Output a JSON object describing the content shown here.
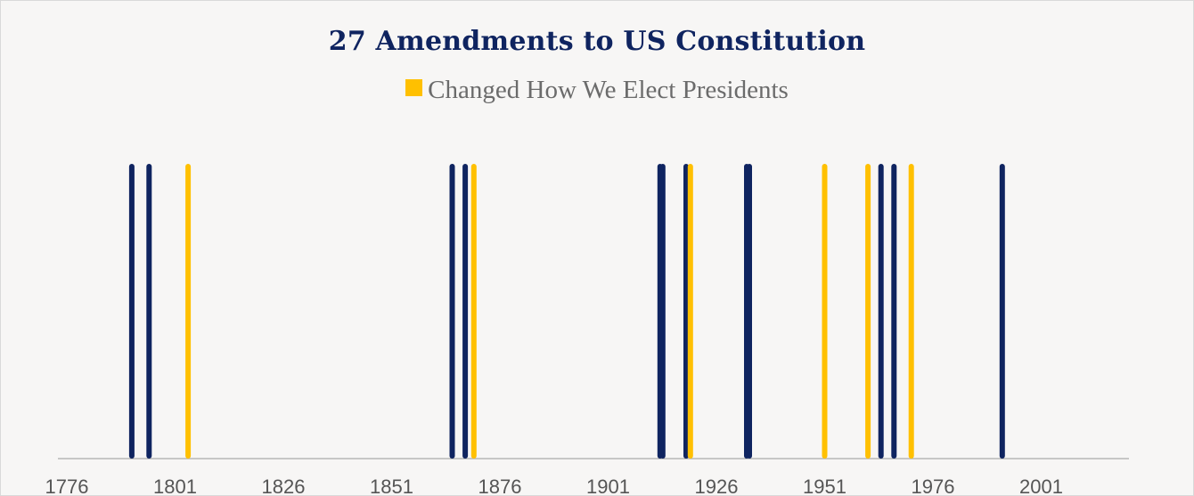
{
  "chart_data": {
    "type": "bar",
    "title": "27 Amendments to US Constitution",
    "legend": [
      {
        "name": "Changed How We Elect Presidents",
        "color": "#ffc000"
      }
    ],
    "legend_position": "top-center",
    "xlabel": "",
    "ylabel": "",
    "xlim": [
      1776,
      2026
    ],
    "xticks": [
      "1776",
      "1801",
      "1826",
      "1851",
      "1876",
      "1901",
      "1926",
      "1951",
      "1976",
      "2001"
    ],
    "colors": {
      "other": "#0f2460",
      "elect": "#ffc000"
    },
    "grid": false,
    "amendments": [
      {
        "year": 1791,
        "elect": false
      },
      {
        "year": 1795,
        "elect": false
      },
      {
        "year": 1804,
        "elect": true
      },
      {
        "year": 1865,
        "elect": false
      },
      {
        "year": 1868,
        "elect": false
      },
      {
        "year": 1870,
        "elect": true
      },
      {
        "year": 1913,
        "elect": false
      },
      {
        "year": 1913,
        "elect": false
      },
      {
        "year": 1919,
        "elect": false
      },
      {
        "year": 1920,
        "elect": true
      },
      {
        "year": 1933,
        "elect": false
      },
      {
        "year": 1933,
        "elect": false
      },
      {
        "year": 1951,
        "elect": true
      },
      {
        "year": 1961,
        "elect": true
      },
      {
        "year": 1964,
        "elect": false
      },
      {
        "year": 1967,
        "elect": false
      },
      {
        "year": 1971,
        "elect": true
      },
      {
        "year": 1992,
        "elect": false
      }
    ]
  }
}
